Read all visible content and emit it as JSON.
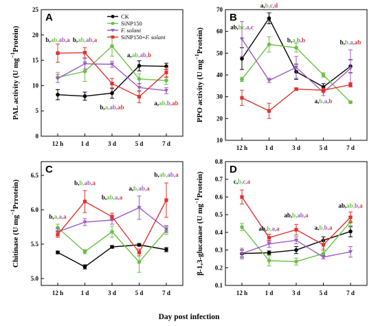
{
  "figure": {
    "x_title": "Day post infection"
  },
  "colors": {
    "CK": "#000000",
    "SiNP150": "#6abf45",
    "F. solani": "#9b59c6",
    "SiNP150+F. solani": "#e0332d"
  },
  "legend": {
    "entries": [
      {
        "key": "CK",
        "text": "CK",
        "italic_tail": ""
      },
      {
        "key": "SiNP150",
        "text": "SiNP150",
        "italic_tail": ""
      },
      {
        "key": "F. solani",
        "text": "",
        "italic_tail": "F. solani"
      },
      {
        "key": "SiNP150+F. solani",
        "text": "SiNP150+",
        "italic_tail": "F. solani"
      }
    ]
  },
  "chart_data": [
    {
      "id": "A",
      "type": "line",
      "panel_label": "A",
      "ylabel_pre": "PAL activity (U mg",
      "ylabel_sup": "−1",
      "ylabel_post": "Protein)",
      "categories": [
        "12 h",
        "1 d",
        "3 d",
        "5 d",
        "7 d"
      ],
      "ylim": [
        0,
        25
      ],
      "yticks": [
        0,
        5,
        10,
        15,
        20,
        25
      ],
      "series": [
        {
          "name": "CK",
          "values": [
            8.2,
            7.9,
            8.5,
            13.9,
            13.8
          ],
          "errors": [
            1.0,
            0.8,
            1.0,
            1.0,
            0.6
          ]
        },
        {
          "name": "SiNP150",
          "values": [
            11.6,
            12.8,
            17.8,
            11.3,
            11.0
          ],
          "errors": [
            1.0,
            2.0,
            2.0,
            1.0,
            0.8
          ]
        },
        {
          "name": "F. solani",
          "values": [
            11.4,
            14.3,
            14.2,
            9.6,
            9.0
          ],
          "errors": [
            0.8,
            1.0,
            0.6,
            0.8,
            0.6
          ]
        },
        {
          "name": "SiNP150+F. solani",
          "values": [
            16.4,
            16.5,
            10.4,
            7.8,
            12.6
          ],
          "errors": [
            1.8,
            1.0,
            1.0,
            1.2,
            1.0
          ]
        }
      ],
      "annotations": [
        {
          "cat": 0,
          "y": 18.6,
          "parts": [
            "b",
            "ab",
            "ab",
            "a"
          ]
        },
        {
          "cat": 1,
          "y": 18.6,
          "parts": [
            "b",
            "ab",
            "ab",
            "a"
          ]
        },
        {
          "cat": 3,
          "y": 15.6,
          "parts": [
            "a",
            "ab",
            "ab",
            "b"
          ]
        },
        {
          "cat": 2,
          "y": 5.3,
          "parts": [
            "b",
            "a",
            "ab",
            "ab"
          ]
        },
        {
          "cat": 4,
          "y": 6.1,
          "parts": [
            "a",
            "ab",
            "b",
            "ab"
          ]
        }
      ]
    },
    {
      "id": "B",
      "type": "line",
      "panel_label": "B",
      "ylabel_pre": "PPO activity (U mg",
      "ylabel_sup": "−1",
      "ylabel_post": "Protein)",
      "categories": [
        "12 h",
        "1 d",
        "3 d",
        "5 d",
        "7 d"
      ],
      "ylim": [
        10,
        70
      ],
      "yticks": [
        10,
        20,
        30,
        40,
        50,
        60,
        70
      ],
      "series": [
        {
          "name": "CK",
          "values": [
            47.5,
            66.0,
            41.5,
            34.5,
            44.0
          ],
          "errors": [
            5.0,
            2.5,
            3.5,
            1.5,
            3.0
          ]
        },
        {
          "name": "SiNP150",
          "values": [
            38.0,
            54.0,
            52.5,
            40.0,
            27.5
          ],
          "errors": [
            1.0,
            3.5,
            2.0,
            1.0,
            0.5
          ]
        },
        {
          "name": "F. solani",
          "values": [
            56.5,
            37.5,
            43.5,
            32.0,
            43.0
          ],
          "errors": [
            8.0,
            1.0,
            5.0,
            1.5,
            8.5
          ]
        },
        {
          "name": "SiNP150+F. solani",
          "values": [
            29.5,
            23.5,
            33.5,
            33.0,
            35.5
          ],
          "errors": [
            3.5,
            3.5,
            0.5,
            1.0,
            1.0
          ]
        }
      ],
      "annotations": [
        {
          "cat": 0,
          "y": 61.0,
          "parts": [
            "ab",
            "bc",
            "a",
            "c"
          ]
        },
        {
          "cat": 1,
          "y": 71.0,
          "parts": [
            "a",
            "b",
            "c",
            "d"
          ]
        },
        {
          "cat": 2,
          "y": 55.0,
          "parts": [
            "b",
            "a",
            "b",
            "b"
          ]
        },
        {
          "cat": 3,
          "y": 27.0,
          "parts": [
            "a",
            "b",
            "a",
            "b"
          ]
        },
        {
          "cat": 4,
          "y": 54.0,
          "parts": [
            "b",
            "b",
            "a",
            "ab"
          ]
        }
      ]
    },
    {
      "id": "C",
      "type": "line",
      "panel_label": "C",
      "ylabel_pre": "Chitinase (U mg",
      "ylabel_sup": "−1",
      "ylabel_post": "Prrotein)",
      "categories": [
        "12 h",
        "1 d",
        "3 d",
        "5 d",
        "7 d"
      ],
      "ylim": [
        4.9,
        6.7
      ],
      "yticks": [
        5.0,
        5.5,
        6.0,
        6.5
      ],
      "series": [
        {
          "name": "CK",
          "values": [
            5.38,
            5.17,
            5.46,
            5.49,
            5.42
          ],
          "errors": [
            0.02,
            0.03,
            0.02,
            0.02,
            0.03
          ]
        },
        {
          "name": "SiNP150",
          "values": [
            5.74,
            5.39,
            5.68,
            5.24,
            5.7
          ],
          "errors": [
            0.05,
            0.03,
            0.08,
            0.15,
            0.06
          ]
        },
        {
          "name": "F. solani",
          "values": [
            5.68,
            5.82,
            5.85,
            6.03,
            5.72
          ],
          "errors": [
            0.05,
            0.05,
            0.06,
            0.17,
            0.05
          ]
        },
        {
          "name": "SiNP150+F. solani",
          "values": [
            5.64,
            6.12,
            5.9,
            5.38,
            6.14
          ],
          "errors": [
            0.04,
            0.16,
            0.05,
            0.05,
            0.25
          ]
        }
      ],
      "annotations": [
        {
          "cat": 0,
          "y": 5.87,
          "parts": [
            "b",
            "a",
            "a",
            "a"
          ]
        },
        {
          "cat": 1,
          "y": 6.36,
          "parts": [
            "b",
            "b",
            "ab",
            "a"
          ]
        },
        {
          "cat": 2,
          "y": 6.15,
          "parts": [
            "b",
            "ab",
            "a",
            "a"
          ]
        },
        {
          "cat": 3,
          "y": 6.28,
          "parts": [
            "a",
            "b",
            "ab",
            "a"
          ]
        },
        {
          "cat": 4,
          "y": 6.48,
          "parts": [
            "b",
            "ab",
            "ab",
            "a"
          ]
        }
      ]
    },
    {
      "id": "D",
      "type": "line",
      "panel_label": "D",
      "ylabel_pre": "β-1,3-glucanase (U mg",
      "ylabel_sup": "−1",
      "ylabel_post": "Protein)",
      "categories": [
        "12 h",
        "1 d",
        "3 d",
        "5 d",
        "7 d"
      ],
      "ylim": [
        0.1,
        0.8
      ],
      "yticks": [
        0.1,
        0.2,
        0.3,
        0.4,
        0.5,
        0.6,
        0.7,
        0.8
      ],
      "series": [
        {
          "name": "CK",
          "values": [
            0.28,
            0.285,
            0.3,
            0.355,
            0.405
          ],
          "errors": [
            0.02,
            0.01,
            0.02,
            0.02,
            0.03
          ]
        },
        {
          "name": "SiNP150",
          "values": [
            0.43,
            0.24,
            0.235,
            0.28,
            0.46
          ],
          "errors": [
            0.02,
            0.03,
            0.02,
            0.03,
            0.03
          ]
        },
        {
          "name": "F. solani",
          "values": [
            0.28,
            0.335,
            0.355,
            0.26,
            0.29
          ],
          "errors": [
            0.03,
            0.02,
            0.02,
            0.01,
            0.03
          ]
        },
        {
          "name": "SiNP150+F. solani",
          "values": [
            0.6,
            0.37,
            0.415,
            0.33,
            0.485
          ],
          "errors": [
            0.04,
            0.02,
            0.03,
            0.03,
            0.03
          ]
        }
      ],
      "annotations": [
        {
          "cat": 0,
          "y": 0.675,
          "parts": [
            "c",
            "b",
            "c",
            "a"
          ]
        },
        {
          "cat": 1,
          "y": 0.41,
          "parts": [
            "ab",
            "b",
            "a",
            "a"
          ]
        },
        {
          "cat": 2,
          "y": 0.485,
          "parts": [
            "ab",
            "b",
            "ab",
            "a"
          ]
        },
        {
          "cat": 3,
          "y": 0.415,
          "parts": [
            "a",
            "b",
            "b",
            "a"
          ]
        },
        {
          "cat": 4,
          "y": 0.54,
          "parts": [
            "ab",
            "ab",
            "b",
            "a"
          ]
        }
      ]
    }
  ]
}
